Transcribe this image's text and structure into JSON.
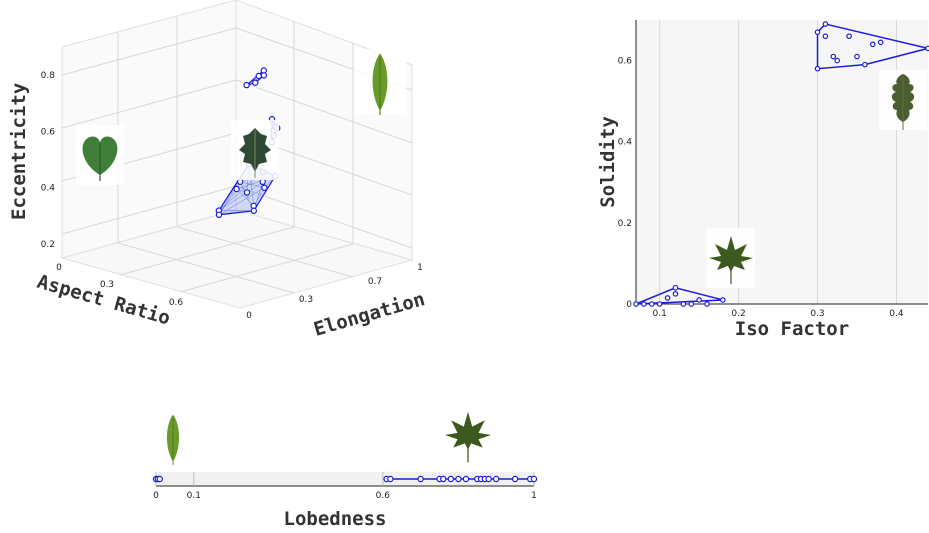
{
  "chart_data": [
    {
      "type": "scatter",
      "subtype": "3d-scatter-with-convex-hulls",
      "title": "",
      "xlabel": "Aspect Ratio",
      "ylabel": "Elongation",
      "zlabel": "Eccentricity",
      "x_ticks": [
        "0",
        "0.3",
        "0.6"
      ],
      "y_ticks": [
        "0",
        "0.3",
        "0.7",
        "1"
      ],
      "z_ticks": [
        "0.2",
        "0.4",
        "0.6",
        "0.8"
      ],
      "grid": true,
      "series": [
        {
          "image": "heart-leaf",
          "points": [
            [
              0.05,
              0.15,
              0.2
            ],
            [
              0.1,
              0.2,
              0.2
            ],
            [
              0.2,
              0.1,
              0.2
            ],
            [
              0.3,
              0.2,
              0.22
            ],
            [
              0.12,
              0.28,
              0.3
            ],
            [
              0.15,
              0.3,
              0.33
            ],
            [
              0.22,
              0.28,
              0.3
            ],
            [
              0.3,
              0.3,
              0.33
            ],
            [
              0.33,
              0.35,
              0.37
            ],
            [
              0.25,
              0.4,
              0.4
            ],
            [
              0.35,
              0.42,
              0.45
            ],
            [
              0.2,
              0.42,
              0.38
            ]
          ]
        },
        {
          "image": "holly-leaf",
          "points": [
            [
              0.35,
              0.55,
              0.55
            ],
            [
              0.37,
              0.58,
              0.6
            ],
            [
              0.38,
              0.6,
              0.62
            ],
            [
              0.4,
              0.6,
              0.65
            ],
            [
              0.36,
              0.57,
              0.58
            ],
            [
              0.39,
              0.62,
              0.62
            ]
          ]
        },
        {
          "image": "narrow-leaf",
          "points": [
            [
              0.7,
              0.85,
              0.92
            ],
            [
              0.75,
              0.9,
              0.92
            ],
            [
              0.8,
              0.92,
              0.93
            ],
            [
              0.85,
              0.95,
              0.92
            ],
            [
              0.9,
              0.95,
              0.92
            ]
          ]
        }
      ]
    },
    {
      "type": "scatter",
      "subtype": "2d-scatter-with-convex-hulls",
      "title": "",
      "xlabel": "Iso Factor",
      "ylabel": "Solidity",
      "x_ticks": [
        "0.1",
        "0.2",
        "0.3",
        "0.4"
      ],
      "y_ticks": [
        "0",
        "0.2",
        "0.4",
        "0.6"
      ],
      "xlim": [
        0.07,
        0.44
      ],
      "ylim": [
        0,
        0.7
      ],
      "grid": true,
      "series": [
        {
          "image": "maple-leaf",
          "hull": [
            [
              0.07,
              0
            ],
            [
              0.18,
              0.01
            ],
            [
              0.12,
              0.04
            ]
          ],
          "points": [
            [
              0.07,
              0
            ],
            [
              0.08,
              0
            ],
            [
              0.09,
              0
            ],
            [
              0.1,
              0
            ],
            [
              0.11,
              0.015
            ],
            [
              0.12,
              0.025
            ],
            [
              0.13,
              0
            ],
            [
              0.14,
              0
            ],
            [
              0.15,
              0.01
            ],
            [
              0.16,
              0
            ],
            [
              0.18,
              0.01
            ],
            [
              0.12,
              0.04
            ]
          ]
        },
        {
          "image": "oak-leaf",
          "hull": [
            [
              0.3,
              0.58
            ],
            [
              0.3,
              0.67
            ],
            [
              0.31,
              0.69
            ],
            [
              0.44,
              0.63
            ],
            [
              0.36,
              0.59
            ]
          ],
          "points": [
            [
              0.3,
              0.58
            ],
            [
              0.3,
              0.67
            ],
            [
              0.31,
              0.69
            ],
            [
              0.31,
              0.66
            ],
            [
              0.32,
              0.61
            ],
            [
              0.325,
              0.6
            ],
            [
              0.34,
              0.66
            ],
            [
              0.35,
              0.61
            ],
            [
              0.36,
              0.59
            ],
            [
              0.37,
              0.64
            ],
            [
              0.38,
              0.645
            ],
            [
              0.44,
              0.63
            ]
          ]
        }
      ]
    },
    {
      "type": "scatter",
      "subtype": "1d-strip",
      "title": "",
      "xlabel": "Lobedness",
      "x_ticks": [
        "0",
        "0.1",
        "0.6",
        "1"
      ],
      "xlim": [
        0,
        1
      ],
      "series": [
        {
          "image": "narrow-leaf",
          "points": [
            0,
            0.005,
            0.01
          ]
        },
        {
          "image": "maple-leaf",
          "points": [
            0.61,
            0.62,
            0.7,
            0.75,
            0.76,
            0.78,
            0.8,
            0.82,
            0.85,
            0.86,
            0.87,
            0.88,
            0.9,
            0.95,
            0.99,
            1.0
          ]
        }
      ]
    }
  ]
}
